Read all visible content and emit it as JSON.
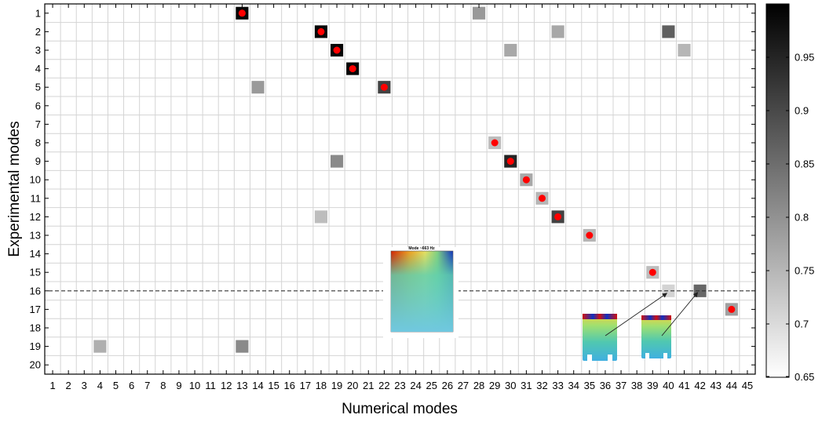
{
  "chart_data": {
    "type": "heatmap",
    "title": "",
    "xlabel": "Numerical modes",
    "ylabel": "Experimental modes",
    "x_range": [
      1,
      45
    ],
    "y_range": [
      1,
      20
    ],
    "grid": true,
    "colormap": "gray (white = low, black = high)",
    "colorbar": {
      "range": [
        0.65,
        1.0
      ],
      "ticks": [
        0.65,
        0.7,
        0.75,
        0.8,
        0.85,
        0.9,
        0.95
      ],
      "position": "right"
    },
    "cells": [
      {
        "x": 13,
        "y": 1,
        "value": 0.99,
        "match": true
      },
      {
        "x": 28,
        "y": 1,
        "value": 0.79,
        "match": false
      },
      {
        "x": 18,
        "y": 2,
        "value": 0.99,
        "match": true
      },
      {
        "x": 33,
        "y": 2,
        "value": 0.77,
        "match": false
      },
      {
        "x": 40,
        "y": 2,
        "value": 0.87,
        "match": false
      },
      {
        "x": 19,
        "y": 3,
        "value": 0.99,
        "match": true
      },
      {
        "x": 30,
        "y": 3,
        "value": 0.77,
        "match": false
      },
      {
        "x": 41,
        "y": 3,
        "value": 0.75,
        "match": false
      },
      {
        "x": 20,
        "y": 4,
        "value": 0.99,
        "match": true
      },
      {
        "x": 14,
        "y": 5,
        "value": 0.79,
        "match": false
      },
      {
        "x": 22,
        "y": 5,
        "value": 0.91,
        "match": true
      },
      {
        "x": 29,
        "y": 8,
        "value": 0.74,
        "match": true
      },
      {
        "x": 19,
        "y": 9,
        "value": 0.81,
        "match": false
      },
      {
        "x": 30,
        "y": 9,
        "value": 0.95,
        "match": true
      },
      {
        "x": 31,
        "y": 10,
        "value": 0.77,
        "match": true
      },
      {
        "x": 32,
        "y": 11,
        "value": 0.75,
        "match": true
      },
      {
        "x": 18,
        "y": 12,
        "value": 0.74,
        "match": false
      },
      {
        "x": 33,
        "y": 12,
        "value": 0.91,
        "match": true
      },
      {
        "x": 35,
        "y": 13,
        "value": 0.75,
        "match": true
      },
      {
        "x": 39,
        "y": 15,
        "value": 0.74,
        "match": true
      },
      {
        "x": 40,
        "y": 16,
        "value": 0.71,
        "match": false
      },
      {
        "x": 42,
        "y": 16,
        "value": 0.86,
        "match": false
      },
      {
        "x": 44,
        "y": 17,
        "value": 0.78,
        "match": true
      },
      {
        "x": 4,
        "y": 19,
        "value": 0.76,
        "match": false
      },
      {
        "x": 13,
        "y": 19,
        "value": 0.81,
        "match": false
      }
    ],
    "divider_after_row": 16,
    "annotations": {
      "center_inset_title": "Mode ~663 Hz",
      "mode_shape_arrows": [
        {
          "to": {
            "x": 40,
            "y": 16
          }
        },
        {
          "to": {
            "x": 42,
            "y": 16
          }
        }
      ]
    }
  }
}
